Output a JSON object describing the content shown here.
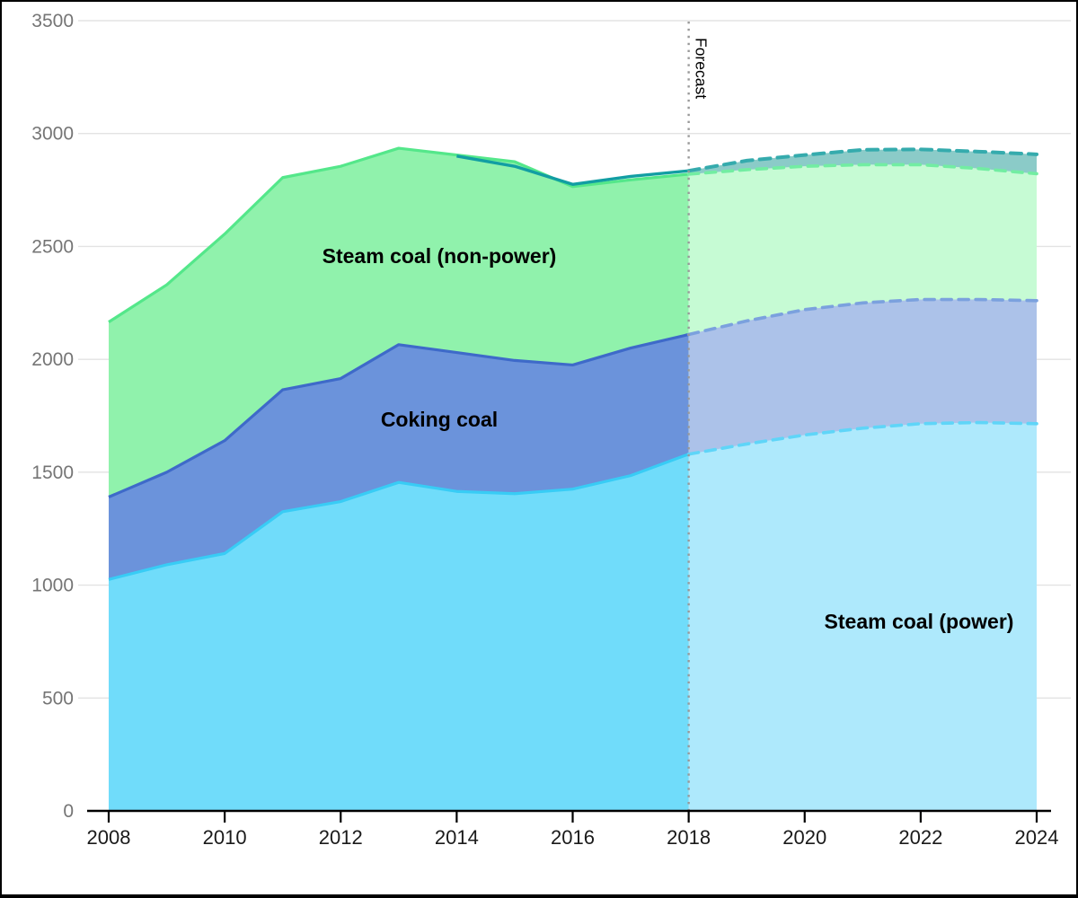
{
  "figure": {
    "forecast_divider_label": "Forecast",
    "area_labels": {
      "steam_nonpower": "Steam coal (non-power)",
      "coking": "Coking coal",
      "steam_power": "Steam coal (power)"
    }
  },
  "chart_data": {
    "type": "area",
    "stacked": true,
    "grid": "horizontal",
    "x": [
      2008,
      2009,
      2010,
      2011,
      2012,
      2013,
      2014,
      2015,
      2016,
      2017,
      2018,
      2019,
      2020,
      2021,
      2022,
      2023,
      2024
    ],
    "x_tick_labels": [
      "2008",
      "2010",
      "2012",
      "2014",
      "2016",
      "2018",
      "2020",
      "2022",
      "2024"
    ],
    "y_ticks": [
      0,
      500,
      1000,
      1500,
      2000,
      2500,
      3000,
      3500
    ],
    "ylim": [
      0,
      3500
    ],
    "forecast_start": 2018,
    "series": [
      {
        "name": "Steam coal (power)",
        "values": [
          1025,
          1090,
          1140,
          1325,
          1370,
          1455,
          1415,
          1405,
          1425,
          1485,
          1580,
          1625,
          1665,
          1695,
          1715,
          1720,
          1715
        ]
      },
      {
        "name": "Coking coal",
        "values": [
          365,
          410,
          500,
          540,
          545,
          610,
          615,
          590,
          550,
          565,
          530,
          545,
          555,
          555,
          550,
          545,
          545
        ]
      },
      {
        "name": "Steam coal (non-power)",
        "values": [
          775,
          830,
          915,
          940,
          940,
          870,
          875,
          880,
          790,
          745,
          710,
          670,
          635,
          612,
          597,
          580,
          562
        ]
      }
    ],
    "stack_totals": [
      2165,
      2330,
      2555,
      2805,
      2855,
      2935,
      2905,
      2875,
      2765,
      2795,
      2820,
      2840,
      2855,
      2862,
      2862,
      2845,
      2822
    ],
    "total_line": {
      "name": "total-teal-line",
      "x": [
        2014,
        2015,
        2016,
        2017,
        2018,
        2019,
        2020,
        2021,
        2022,
        2023,
        2024
      ],
      "values": [
        2900,
        2855,
        2775,
        2810,
        2835,
        2880,
        2905,
        2928,
        2930,
        2920,
        2908
      ]
    },
    "colors": {
      "hist_fill_power": "#70DCFA",
      "hist_fill_coking": "#6B93DB",
      "hist_fill_nonpower": "#90F2AC",
      "hist_stroke_power": "#38CCF5",
      "hist_stroke_coking": "#3E6AC9",
      "hist_stroke_nonpower": "#54E78A",
      "fc_fill_power": "#AEE9FC",
      "fc_fill_coking": "#ACC2E9",
      "fc_fill_nonpower": "#C6FBD4",
      "fc_stroke_power": "#5FD5F8",
      "fc_stroke_coking": "#7BA1DE",
      "fc_stroke_nonpower": "#72EDA2",
      "teal_line": "#129EA3",
      "teal_line_dashed": "#35ABAD",
      "teal_band_fill": "#8BCBC8",
      "gridline": "#E3E3E3",
      "axis": "#000000",
      "x_tick_label": "#1a1a1a",
      "y_tick_label": "#757575",
      "forecast_divider": "#999999",
      "label_text": "#000000"
    }
  }
}
